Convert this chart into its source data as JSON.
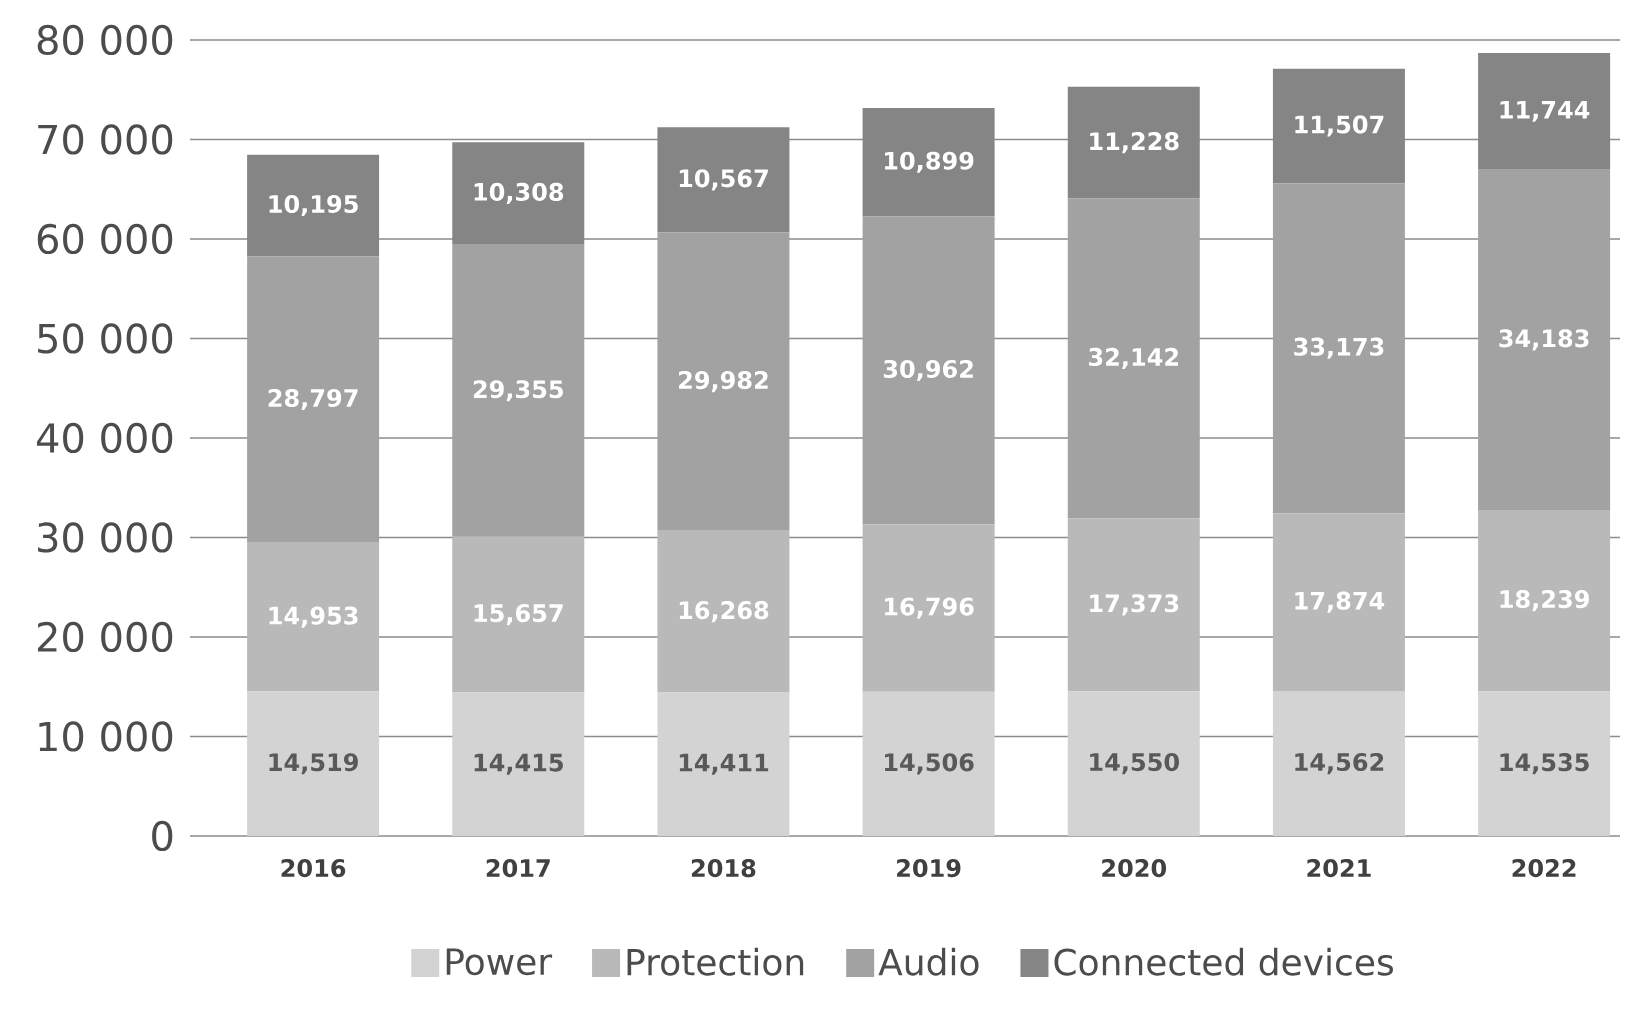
{
  "chart_data": {
    "type": "bar",
    "stacked": true,
    "categories": [
      "2016",
      "2017",
      "2018",
      "2019",
      "2020",
      "2021",
      "2022"
    ],
    "series": [
      {
        "name": "Power",
        "color": "#d3d3d3",
        "values": [
          14519,
          14415,
          14411,
          14506,
          14550,
          14562,
          14535
        ],
        "value_labels": [
          "14,519",
          "14,415",
          "14,411",
          "14,506",
          "14,550",
          "14,562",
          "14,535"
        ]
      },
      {
        "name": "Protection",
        "color": "#b9b9b9",
        "values": [
          14953,
          15657,
          16268,
          16796,
          17373,
          17874,
          18239
        ],
        "value_labels": [
          "14,953",
          "15,657",
          "16,268",
          "16,796",
          "17,373",
          "17,874",
          "18,239"
        ]
      },
      {
        "name": "Audio",
        "color": "#a2a2a2",
        "values": [
          28797,
          29355,
          29982,
          30962,
          32142,
          33173,
          34183
        ],
        "value_labels": [
          "28,797",
          "29,355",
          "29,982",
          "30,962",
          "32,142",
          "33,173",
          "34,183"
        ]
      },
      {
        "name": "Connected devices",
        "color": "#858585",
        "values": [
          10195,
          10308,
          10567,
          10899,
          11228,
          11507,
          11744
        ],
        "value_labels": [
          "10,195",
          "10,308",
          "10,567",
          "10,899",
          "11,228",
          "11,507",
          "11,744"
        ]
      }
    ],
    "ylim": [
      0,
      80000
    ],
    "yticks": [
      {
        "value": 0,
        "label": "0"
      },
      {
        "value": 10000,
        "label": "10 000"
      },
      {
        "value": 20000,
        "label": "20 000"
      },
      {
        "value": 30000,
        "label": "30 000"
      },
      {
        "value": 40000,
        "label": "40 000"
      },
      {
        "value": 50000,
        "label": "50 000"
      },
      {
        "value": 60000,
        "label": "60 000"
      },
      {
        "value": 70000,
        "label": "70 000"
      },
      {
        "value": 80000,
        "label": "80 000"
      }
    ],
    "grid": "y",
    "legend": "bottom"
  }
}
